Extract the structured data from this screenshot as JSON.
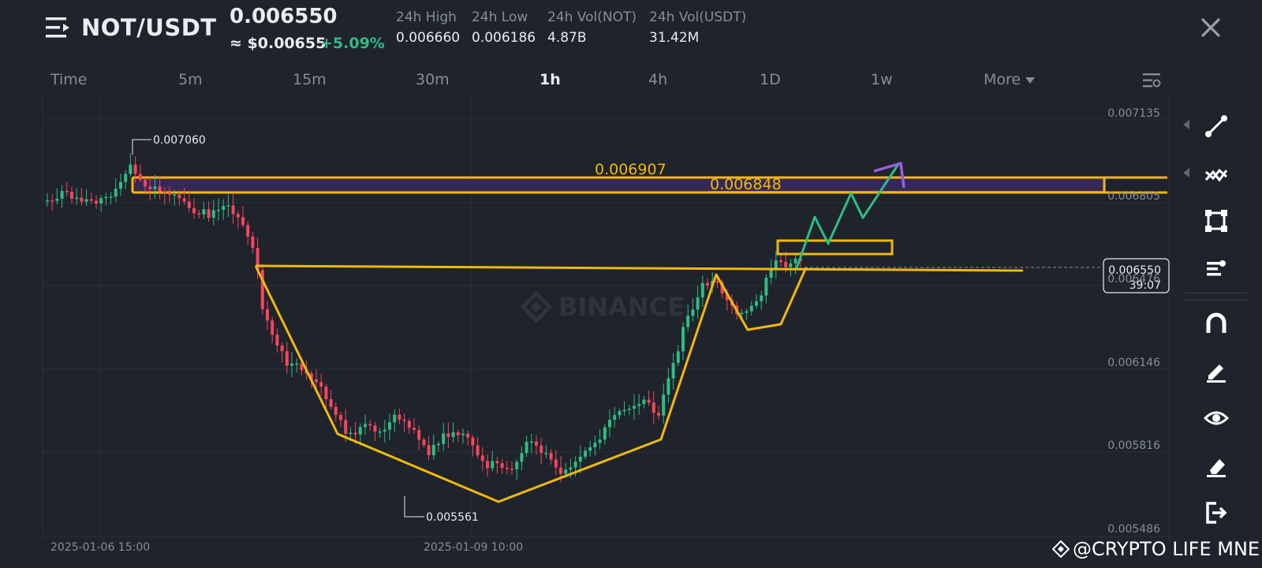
{
  "header": {
    "pair": "NOT/USDT",
    "price": "0.006550",
    "price_usd": "≈ $0.00655",
    "change": "+5.09%",
    "stats": [
      {
        "label": "24h High",
        "value": "0.006660"
      },
      {
        "label": "24h Low",
        "value": "0.006186"
      },
      {
        "label": "24h Vol(NOT)",
        "value": "4.87B"
      },
      {
        "label": "24h Vol(USDT)",
        "value": "31.42M"
      }
    ]
  },
  "tabs": [
    "Time",
    "5m",
    "15m",
    "30m",
    "1h",
    "4h",
    "1D",
    "1w",
    "More"
  ],
  "active_tab": "1h",
  "chart": {
    "price_axis": [
      "0.007135",
      "0.006805",
      "0.006476",
      "0.006146",
      "0.005816",
      "0.005486"
    ],
    "time_axis": [
      "2025-01-06 15:00",
      "2025-01-09 10:00"
    ],
    "high_label": "0.007060",
    "low_label": "0.005561",
    "zone_upper_label": "0.006907",
    "zone_lower_label": "0.006848",
    "current_price": "0.006550",
    "countdown": "39:07",
    "watermark_logo": "BINANCE",
    "colors": {
      "up": "#2ebd85",
      "down": "#f6465d",
      "drawing": "#f0b90b",
      "projection_up": "#2ebd85",
      "projection_arrow": "#9b5de5"
    }
  },
  "toolbar": [
    "trend-line-icon",
    "fib-tool-icon",
    "rectangle-icon",
    "position-icon",
    "magnet-icon",
    "draw-icon",
    "eye-icon",
    "eraser-icon",
    "exit-icon"
  ],
  "watermark": "@CRYPTO LIFE MNE"
}
